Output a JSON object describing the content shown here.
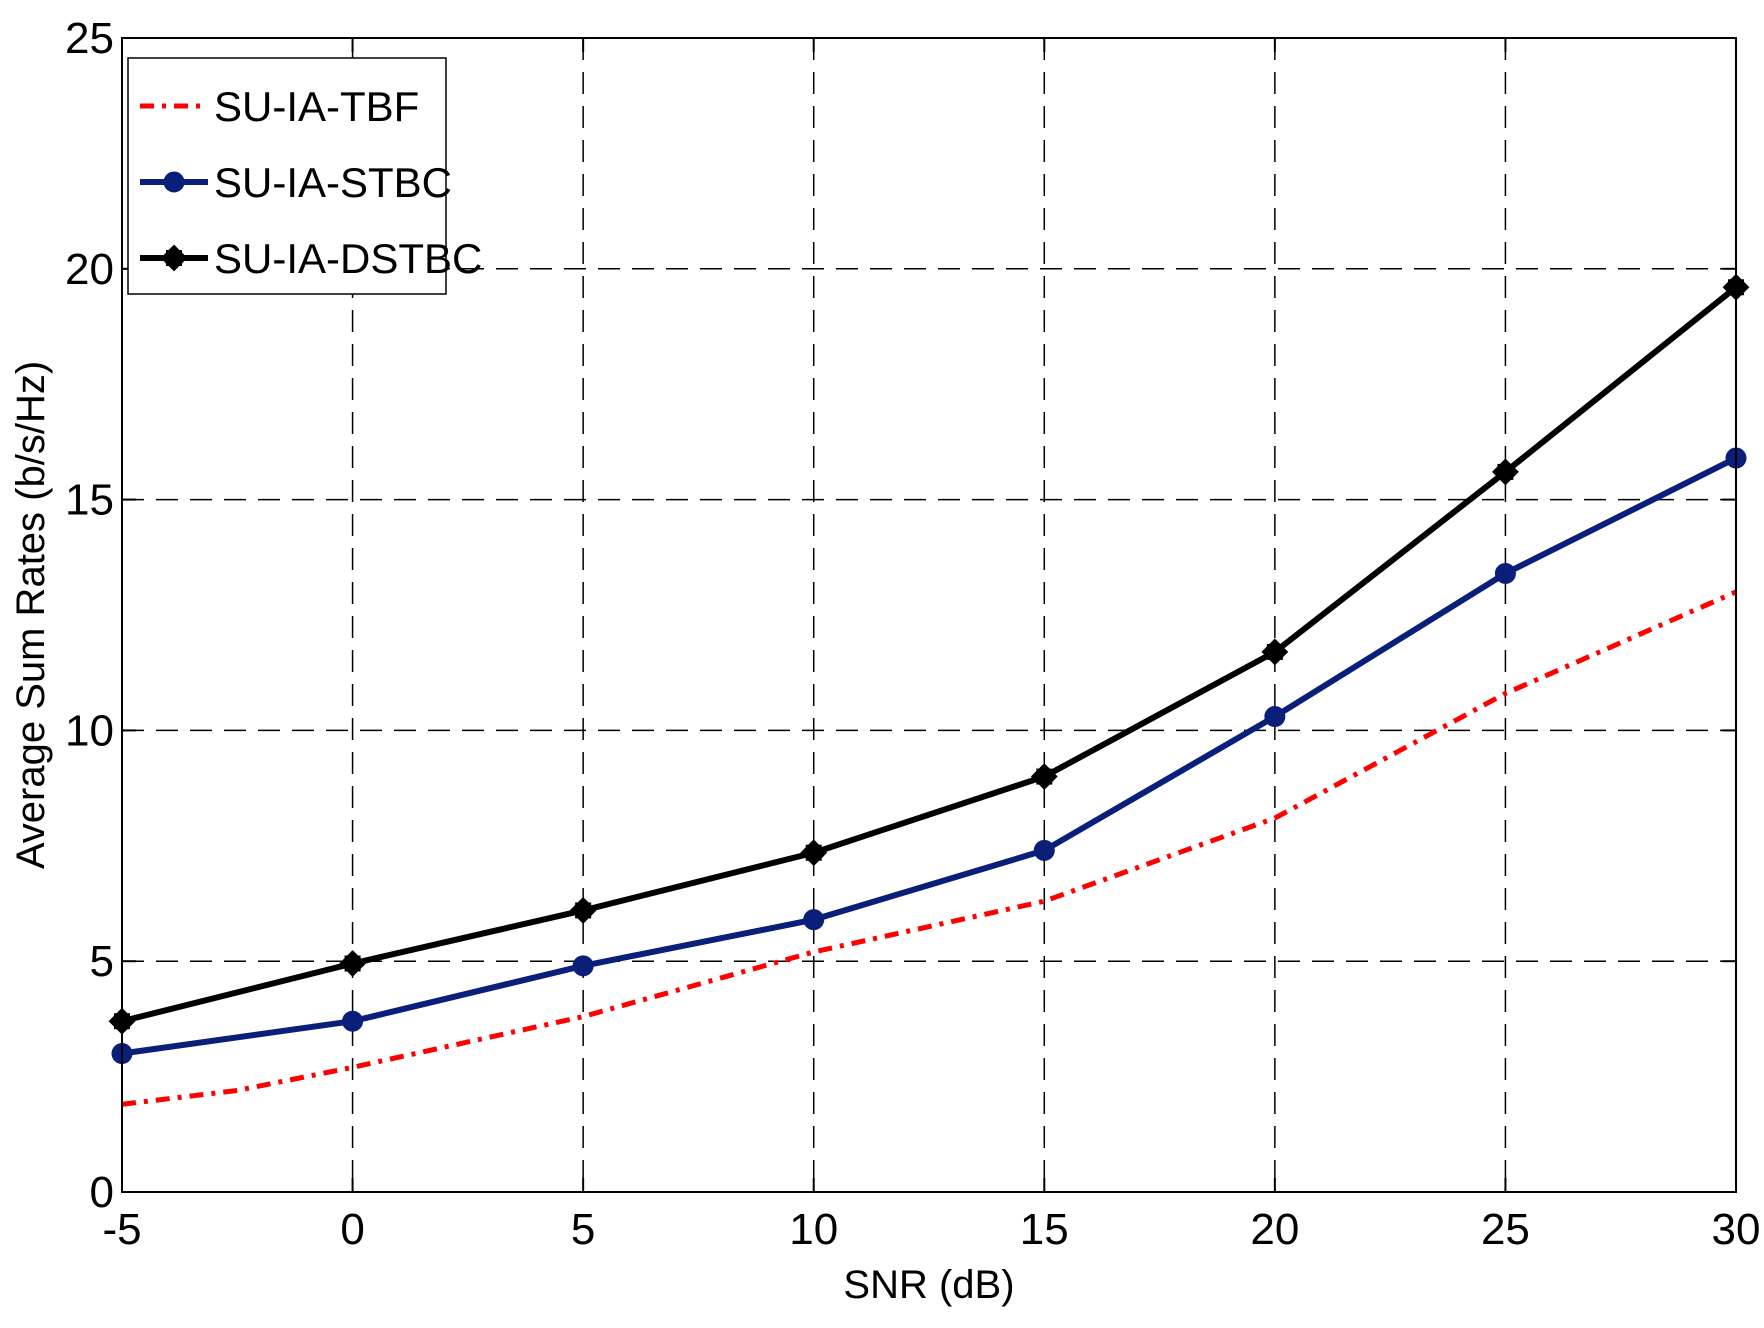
{
  "chart_data": {
    "type": "line",
    "title": "",
    "xlabel": "SNR (dB)",
    "ylabel": "Average Sum Rates (b/s/Hz)",
    "xlim": [
      -5,
      30
    ],
    "ylim": [
      0,
      25
    ],
    "xticks": [
      -5,
      0,
      5,
      10,
      15,
      20,
      25,
      30
    ],
    "yticks": [
      0,
      5,
      10,
      15,
      20,
      25
    ],
    "xtick_labels": [
      "-5",
      "0",
      "5",
      "10",
      "15",
      "20",
      "25",
      "30"
    ],
    "ytick_labels": [
      "0",
      "5",
      "10",
      "15",
      "20",
      "25"
    ],
    "grid": true,
    "legend_position": "top-left",
    "series": [
      {
        "name": "SU-IA-TBF",
        "color": "#ff0000",
        "line_style": "dash-dot",
        "marker": "none",
        "x": [
          -5,
          -2.5,
          0,
          5,
          10,
          15,
          20,
          25,
          30
        ],
        "y": [
          1.9,
          2.2,
          2.7,
          3.8,
          5.2,
          6.3,
          8.1,
          10.8,
          13.0
        ]
      },
      {
        "name": "SU-IA-STBC",
        "color": "#0a1f7a",
        "line_style": "solid",
        "marker": "circle",
        "x": [
          -5,
          0,
          5,
          10,
          15,
          20,
          25,
          30
        ],
        "y": [
          3.0,
          3.7,
          4.9,
          5.9,
          7.4,
          10.3,
          13.4,
          15.9
        ]
      },
      {
        "name": "SU-IA-DSTBC",
        "color": "#000000",
        "line_style": "solid",
        "marker": "diamond",
        "x": [
          -5,
          0,
          5,
          10,
          15,
          20,
          25,
          30
        ],
        "y": [
          3.7,
          4.95,
          6.1,
          7.35,
          9.0,
          11.7,
          15.6,
          19.6
        ]
      }
    ]
  }
}
